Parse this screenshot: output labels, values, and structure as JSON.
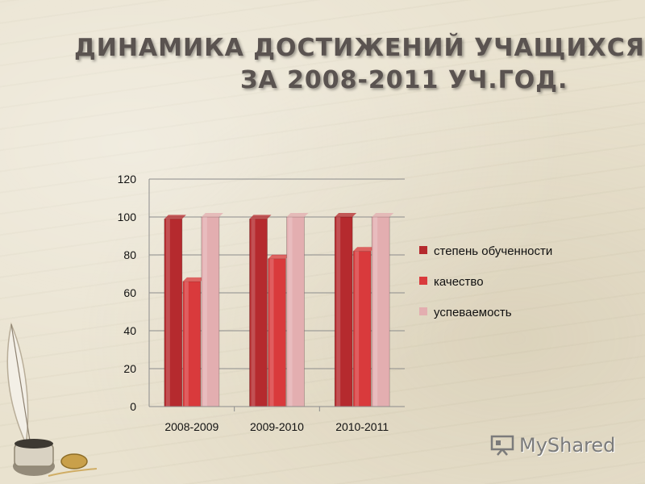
{
  "title_line1": "ДИНАМИКА ДОСТИЖЕНИЙ УЧАЩИХСЯ",
  "title_line2": "ЗА 2008-2011 УЧ.ГОД.",
  "watermark": "MyShared",
  "chart_data": {
    "type": "bar",
    "categories": [
      "2008-2009",
      "2009-2010",
      "2010-2011"
    ],
    "series": [
      {
        "name": "степень обученности",
        "values": [
          99,
          99,
          100
        ],
        "color": "#b52a2e"
      },
      {
        "name": "качество",
        "values": [
          66,
          78,
          82
        ],
        "color": "#d93a3c"
      },
      {
        "name": "успеваемость",
        "values": [
          100,
          100,
          100
        ],
        "color": "#e3aeb0"
      }
    ],
    "ylim": [
      0,
      120
    ],
    "yticks": [
      "0",
      "20",
      "40",
      "60",
      "80",
      "100",
      "120"
    ],
    "grid": true,
    "legend_position": "right"
  },
  "icons": {
    "logo": "presentation-board-icon",
    "decoration": "quill-inkwell-icon"
  }
}
